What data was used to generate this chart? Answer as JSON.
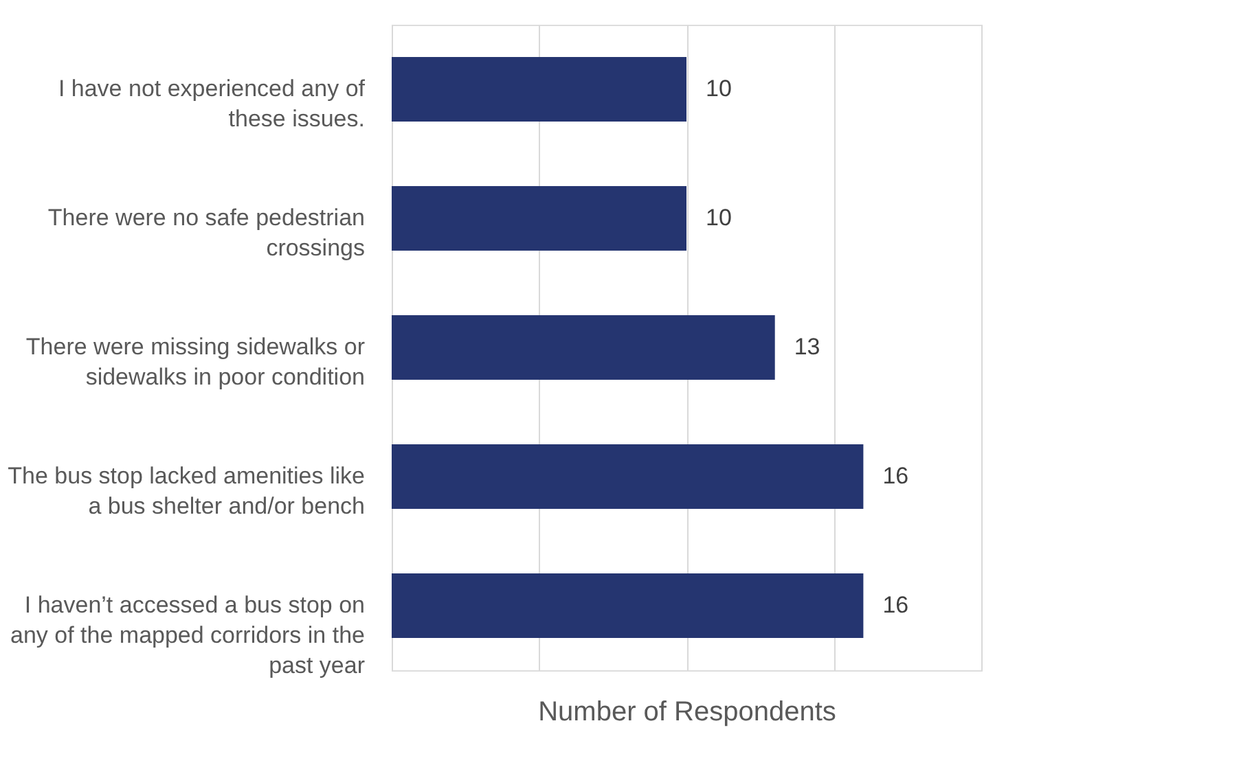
{
  "chart_data": {
    "type": "bar",
    "orientation": "horizontal",
    "categories": [
      "I have not experienced any of these issues.",
      "There were no safe pedestrian crossings",
      "There were missing sidewalks or sidewalks in poor condition",
      "The bus stop lacked amenities like a bus shelter and/or bench",
      "I haven’t accessed a bus stop on any of the mapped corridors in the past year"
    ],
    "values": [
      10,
      10,
      13,
      16,
      16
    ],
    "color": "#253570",
    "xlabel": "Number of Respondents",
    "xlim": [
      0,
      20
    ],
    "xticks": [
      {
        "value": 0,
        "label": null
      },
      {
        "value": 5,
        "label": null
      },
      {
        "value": 10,
        "label": null
      },
      {
        "value": 15,
        "label": null
      },
      {
        "value": 20,
        "label": null
      }
    ],
    "tick_labels": "y",
    "grid": "x",
    "data_labels": true
  }
}
